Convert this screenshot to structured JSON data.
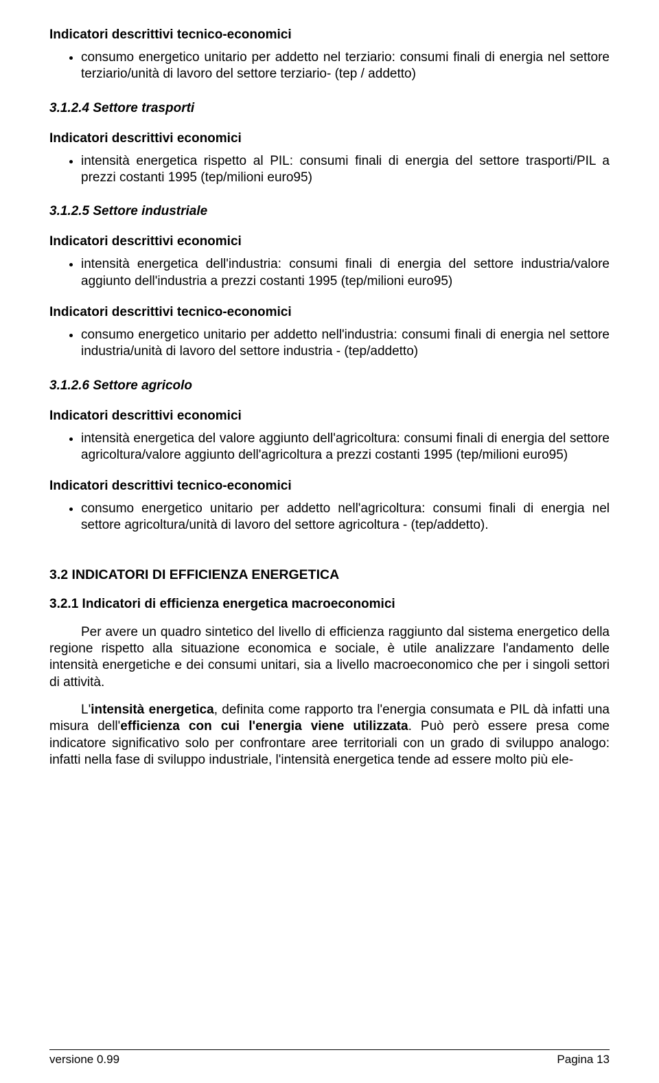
{
  "section1": {
    "heading": "Indicatori descrittivi tecnico-economici",
    "bullet": "consumo energetico unitario per addetto nel terziario: consumi finali di energia nel settore terziario/unità di lavoro del settore terziario- (tep / addetto)"
  },
  "sec314": {
    "heading": "3.1.2.4 Settore trasporti",
    "sub1": "Indicatori descrittivi economici",
    "bullet1": "intensità energetica rispetto al PIL: consumi finali di energia del settore trasporti/PIL a prezzi costanti 1995 (tep/milioni euro95)"
  },
  "sec315": {
    "heading": "3.1.2.5 Settore industriale",
    "sub1": "Indicatori descrittivi economici",
    "bullet1": "intensità energetica dell'industria: consumi finali di energia del settore industria/valore aggiunto dell'industria a prezzi costanti 1995 (tep/milioni euro95)",
    "sub2": "Indicatori descrittivi tecnico-economici",
    "bullet2": "consumo energetico unitario per addetto nell'industria: consumi finali di energia nel settore industria/unità di lavoro del settore industria - (tep/addetto)"
  },
  "sec316": {
    "heading": "3.1.2.6 Settore agricolo",
    "sub1": "Indicatori descrittivi economici",
    "bullet1": "intensità energetica del valore aggiunto dell'agricoltura: consumi finali di energia del settore agricoltura/valore aggiunto dell'agricoltura a prezzi costanti 1995 (tep/milioni euro95)",
    "sub2": "Indicatori descrittivi tecnico-economici",
    "bullet2": "consumo energetico unitario per addetto nell'agricoltura: consumi finali di energia nel settore agricoltura/unità di lavoro del settore agricoltura - (tep/addetto)."
  },
  "sec32": {
    "heading": "3.2 INDICATORI DI EFFICIENZA ENERGETICA",
    "subheading": "3.2.1 Indicatori di efficienza energetica macroeconomici",
    "para1": "Per avere un quadro sintetico del livello di efficienza raggiunto dal sistema energetico della regione rispetto alla situazione economica e sociale, è utile analizzare l'andamento delle intensità energetiche e dei consumi unitari, sia a livello macroeconomico che per i singoli settori di attività.",
    "para2_pre": "L'",
    "para2_b1": "intensità energetica",
    "para2_mid": ", definita come rapporto tra l'energia consumata e PIL dà infatti una misura dell'",
    "para2_b2": "efficienza con cui l'energia viene utilizzata",
    "para2_post": ". Può però essere presa come indicatore significativo solo per confrontare aree territoriali con un grado di sviluppo analogo: infatti nella fase di sviluppo industriale, l'intensità energetica tende ad essere molto più ele-"
  },
  "footer": {
    "left": "versione 0.99",
    "right": "Pagina 13"
  }
}
